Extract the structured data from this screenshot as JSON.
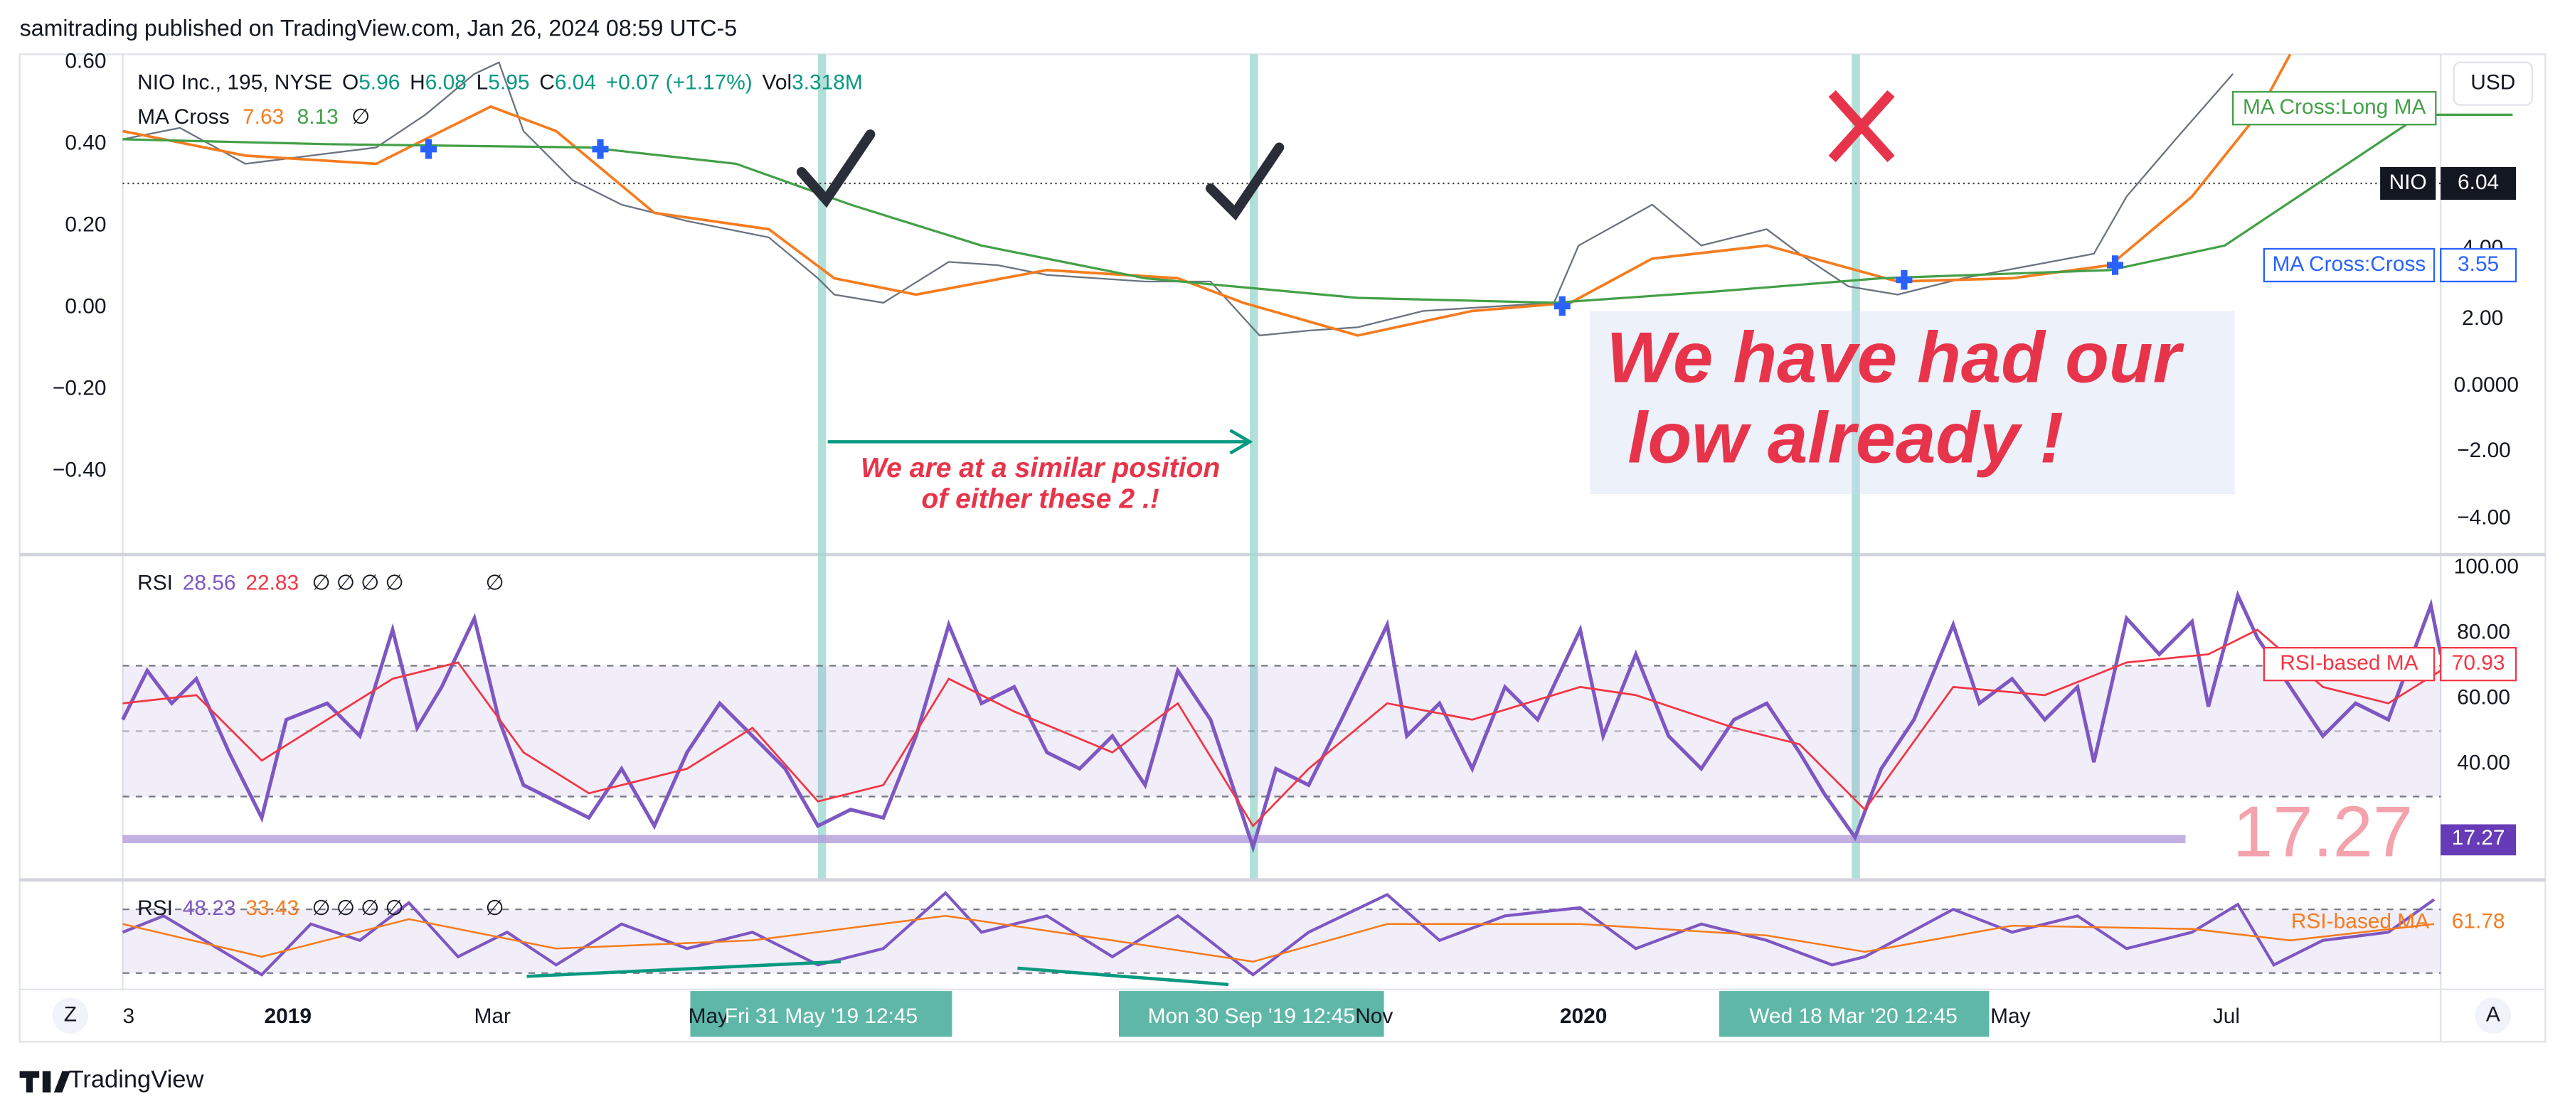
{
  "header": {
    "publisher": "samitrading published on TradingView.com, Jan 26, 2024 08:59 UTC-5"
  },
  "legend": {
    "symbol": "NIO Inc., 195, NYSE",
    "open_label": "O",
    "open": "5.96",
    "high_label": "H",
    "high": "6.08",
    "low_label": "L",
    "low": "5.95",
    "close_label": "C",
    "close": "6.04",
    "change": "+0.07 (+1.17%)",
    "volume_label": "Vol",
    "volume": "3.318M",
    "ma_name": "MA Cross",
    "ma_fast": "7.63",
    "ma_slow": "8.13",
    "ma_extra": "∅"
  },
  "price_axis_left": [
    "0.60",
    "0.40",
    "0.20",
    "0.00",
    "−0.20",
    "−0.40"
  ],
  "price_axis_right": {
    "currency": "USD",
    "long_ma_label": "MA Cross:Long MA",
    "symbol_tag": "NIO",
    "last_price": "6.04",
    "cross_label": "MA Cross:Cross",
    "cross_value": "3.55",
    "ticks": [
      "4.00",
      "2.00",
      "0.0000",
      "−2.00",
      "−4.00"
    ]
  },
  "annotations": {
    "low_line1": "We have had our",
    "low_line2": "low already !",
    "similar_line1": "We are at a similar position",
    "similar_line2": "of either these 2 .!"
  },
  "rsi_pane": {
    "name": "RSI",
    "value": "28.56",
    "ma": "22.83",
    "extras": "∅ ∅ ∅ ∅",
    "extra2": "∅",
    "ticks": [
      "100.00",
      "80.00",
      "60.00",
      "40.00"
    ],
    "ma_label": "RSI-based MA",
    "ma_value": "70.93",
    "big_value": "17.27",
    "value_tag": "17.27"
  },
  "rsi2_pane": {
    "name": "RSI",
    "value": "48.23",
    "ma": "33.43",
    "extras": "∅ ∅ ∅ ∅",
    "extra2": "∅",
    "ma_label": "RSI-based MA",
    "ma_value": "61.78"
  },
  "time_axis": {
    "labels": [
      "3",
      "2019",
      "Mar",
      "May",
      "Nov",
      "2020",
      "May",
      "Jul"
    ],
    "highlights": [
      "Fri 31 May '19   12:45",
      "Mon 30 Sep '19   12:45",
      "Wed 18 Mar '20   12:45"
    ],
    "left_button": "Z",
    "right_button": "A"
  },
  "footer": {
    "brand": "TradingView"
  }
}
